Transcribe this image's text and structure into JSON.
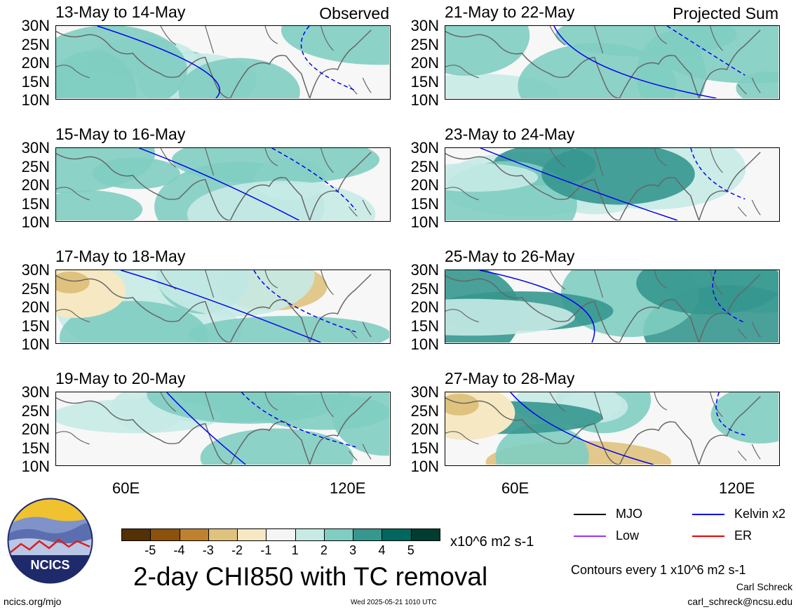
{
  "panels": [
    {
      "title": "13-May to 14-May",
      "tag": "Observed"
    },
    {
      "title": "15-May to 16-May",
      "tag": ""
    },
    {
      "title": "17-May to 18-May",
      "tag": ""
    },
    {
      "title": "19-May to 20-May",
      "tag": ""
    },
    {
      "title": "21-May to 22-May",
      "tag": "Projected Sum"
    },
    {
      "title": "23-May to 24-May",
      "tag": ""
    },
    {
      "title": "25-May to 26-May",
      "tag": ""
    },
    {
      "title": "27-May to 28-May",
      "tag": ""
    }
  ],
  "lat_labels": [
    "30N",
    "25N",
    "20N",
    "15N",
    "10N"
  ],
  "lon_labels": [
    "60E",
    "120E"
  ],
  "colorbar": {
    "labels": [
      "-5",
      "-4",
      "-3",
      "-2",
      "-1",
      "1",
      "2",
      "3",
      "4",
      "5"
    ],
    "colors": [
      "#543005",
      "#8c510a",
      "#bf812d",
      "#dfc27d",
      "#f6e8c3",
      "#f5f5f5",
      "#c7eae5",
      "#80cdc1",
      "#35978f",
      "#01665e",
      "#003c30"
    ],
    "units": "x10^6 m2 s-1"
  },
  "main_title": "2-day CHI850 with TC removal",
  "legend": [
    {
      "label": "MJO",
      "color": "#000000"
    },
    {
      "label": "Kelvin x2",
      "color": "#0000ee"
    },
    {
      "label": "Low",
      "color": "#9933ff"
    },
    {
      "label": "ER",
      "color": "#ee0000"
    }
  ],
  "contours_note": "Contours every 1 x10^6 m2 s-1",
  "author": "Carl Schreck",
  "email": "carl_schreck@ncsu.edu",
  "logo_text": "NCICS",
  "site": "ncics.org/mjo",
  "timestamp": "Wed 2025-05-21 1010 UTC"
}
